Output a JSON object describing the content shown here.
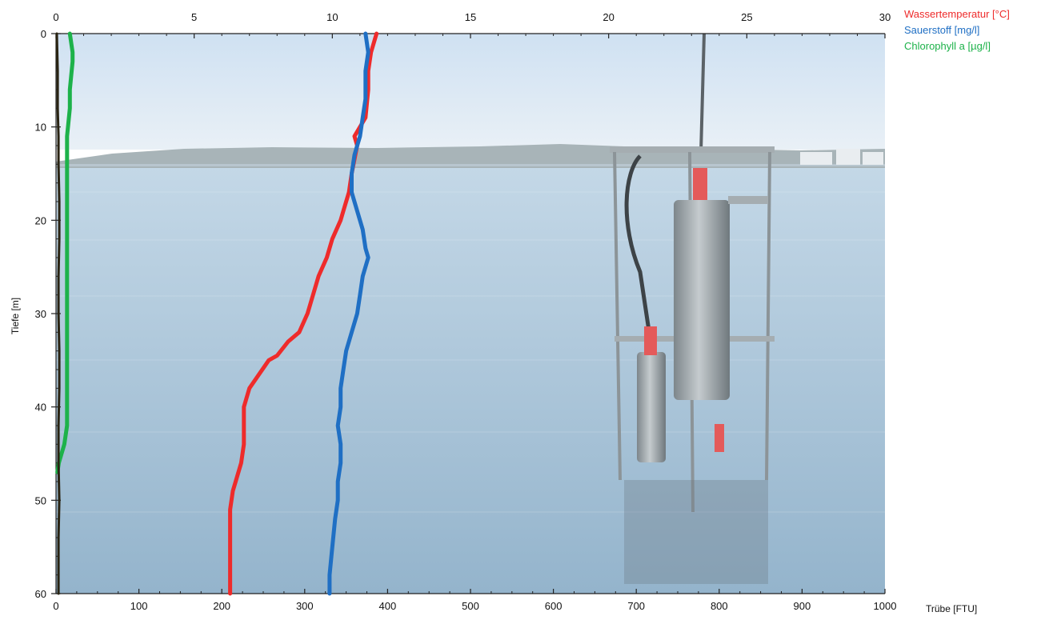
{
  "chart_data": {
    "type": "line",
    "legend_placement": "top-right",
    "grid": false,
    "y_axis": {
      "label": "Tiefe [m]",
      "range": [
        0,
        60
      ],
      "ticks": [
        0,
        10,
        20,
        30,
        40,
        50,
        60
      ],
      "inverted": true
    },
    "x_top": {
      "range": [
        0,
        30
      ],
      "ticks": [
        0,
        5,
        10,
        15,
        20,
        25,
        30
      ]
    },
    "x_bottom": {
      "label": "Trübe [FTU]",
      "range": [
        0,
        1000
      ],
      "ticks": [
        0,
        100,
        200,
        300,
        400,
        500,
        600,
        700,
        800,
        900,
        1000
      ]
    },
    "series": [
      {
        "name": "Wassertemperatur [°C]",
        "axis": "top",
        "color": "#ee2b2b",
        "x": [
          11.6,
          11.4,
          11.3,
          11.3,
          11.2,
          10.8,
          10.9,
          10.7,
          10.6,
          10.5,
          10.4,
          10.3,
          10.0,
          9.8,
          9.5,
          9.3,
          9.1,
          8.8,
          8.4,
          8.0,
          7.7,
          7.0,
          6.8,
          6.8,
          6.7,
          6.5,
          6.4,
          6.3,
          6.3,
          6.3,
          6.3,
          6.3
        ],
        "y": [
          0,
          2,
          4,
          6,
          9,
          11,
          12,
          15,
          17,
          18,
          19,
          20,
          22,
          24,
          26,
          28,
          30,
          32,
          33,
          34.5,
          35,
          38,
          40,
          44,
          46,
          48,
          49,
          51,
          54,
          56,
          58,
          60
        ]
      },
      {
        "name": "Sauerstoff [mg/l]",
        "axis": "top",
        "color": "#1f6fc4",
        "x": [
          11.2,
          11.3,
          11.2,
          11.2,
          11.1,
          11.0,
          10.8,
          10.7,
          10.7,
          10.9,
          11.1,
          11.2,
          11.3,
          11.1,
          11.0,
          10.9,
          10.7,
          10.5,
          10.4,
          10.3,
          10.3,
          10.2,
          10.3,
          10.3,
          10.2,
          10.2,
          10.1,
          10.0,
          9.9,
          9.9
        ],
        "y": [
          0,
          2,
          4,
          7,
          9,
          11,
          13,
          15,
          17,
          19,
          21,
          23,
          24,
          26,
          28,
          30,
          32,
          34,
          36,
          38,
          40,
          42,
          44,
          46,
          48,
          50,
          52,
          55,
          58,
          60
        ]
      },
      {
        "name": "Chlorophyll a [µg/l]",
        "axis": "top",
        "color": "#1db24a",
        "x": [
          0.5,
          0.6,
          0.6,
          0.5,
          0.5,
          0.4,
          0.4,
          0.4,
          0.4,
          0.4,
          0.4,
          0.4,
          0.4,
          0.4,
          0.4,
          0.3,
          0.1,
          0.05
        ],
        "y": [
          0,
          2,
          3,
          6,
          8,
          11,
          14,
          18,
          22,
          26,
          30,
          34,
          38,
          40,
          42,
          44,
          46,
          47
        ]
      },
      {
        "name": "Trübe [FTU]",
        "axis": "bottom",
        "color": "#2a2413",
        "x": [
          1,
          2,
          2,
          3,
          3,
          4,
          4,
          3,
          3,
          4,
          4,
          3,
          3,
          4,
          3,
          3,
          3
        ],
        "y": [
          0,
          4,
          8,
          11,
          14,
          18,
          22,
          26,
          30,
          34,
          38,
          42,
          46,
          50,
          54,
          58,
          60
        ]
      }
    ]
  },
  "labels": {
    "legend": [
      "Wassertemperatur [°C]",
      "Sauerstoff [mg/l]",
      "Chlorophyll a [µg/l]"
    ],
    "y_title": "Tiefe [m]",
    "bottom_title": "Trübe [FTU]"
  },
  "colors": {
    "sky_top": "#cfe1f2",
    "sky_bottom": "#e9f0f6",
    "water_top": "#c4d8e7",
    "water_bottom": "#94b4cc",
    "shore": "#a8b4b8",
    "probe_metal": "#9aa3a8"
  }
}
